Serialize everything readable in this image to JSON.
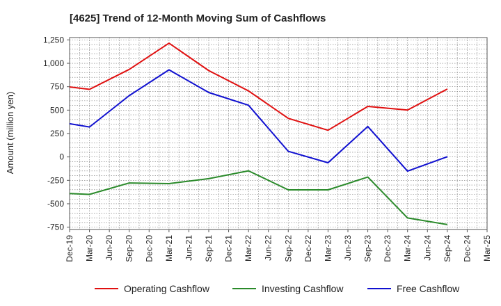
{
  "chart_data": {
    "type": "line",
    "title": "[4625]  Trend of 12-Month Moving Sum of Cashflows",
    "xlabel": "",
    "ylabel": "Amount (million yen)",
    "ylim": [
      -750,
      1250
    ],
    "yticks": [
      1250,
      1000,
      750,
      500,
      250,
      0,
      -250,
      -500,
      -750
    ],
    "ytick_labels": [
      "1,250",
      "1,000",
      "750",
      "500",
      "250",
      "0",
      "-250",
      "-500",
      "-750"
    ],
    "categories": [
      "Dec-19",
      "Mar-20",
      "Jun-20",
      "Sep-20",
      "Dec-20",
      "Mar-21",
      "Jun-21",
      "Sep-21",
      "Dec-21",
      "Mar-22",
      "Jun-22",
      "Sep-22",
      "Dec-22",
      "Mar-23",
      "Jun-23",
      "Sep-23",
      "Dec-23",
      "Mar-24",
      "Jun-24",
      "Sep-24",
      "Dec-24",
      "Mar-25"
    ],
    "grid": true,
    "legend_position": "bottom",
    "series": [
      {
        "name": "Operating Cashflow",
        "color": "#e01010",
        "values": [
          748,
          722,
          null,
          935,
          null,
          1215,
          null,
          922,
          null,
          705,
          null,
          412,
          null,
          285,
          null,
          540,
          null,
          500,
          null,
          725,
          null,
          null
        ]
      },
      {
        "name": "Investing Cashflow",
        "color": "#2a8a2a",
        "values": [
          -390,
          -400,
          null,
          -278,
          null,
          -285,
          null,
          -232,
          null,
          -148,
          null,
          -352,
          null,
          -352,
          null,
          -215,
          null,
          -652,
          null,
          -722,
          null,
          null
        ]
      },
      {
        "name": "Free Cashflow",
        "color": "#1010d0",
        "values": [
          355,
          320,
          null,
          655,
          null,
          930,
          null,
          688,
          null,
          552,
          null,
          60,
          null,
          -62,
          null,
          325,
          null,
          -152,
          null,
          3,
          null,
          null
        ]
      }
    ]
  }
}
